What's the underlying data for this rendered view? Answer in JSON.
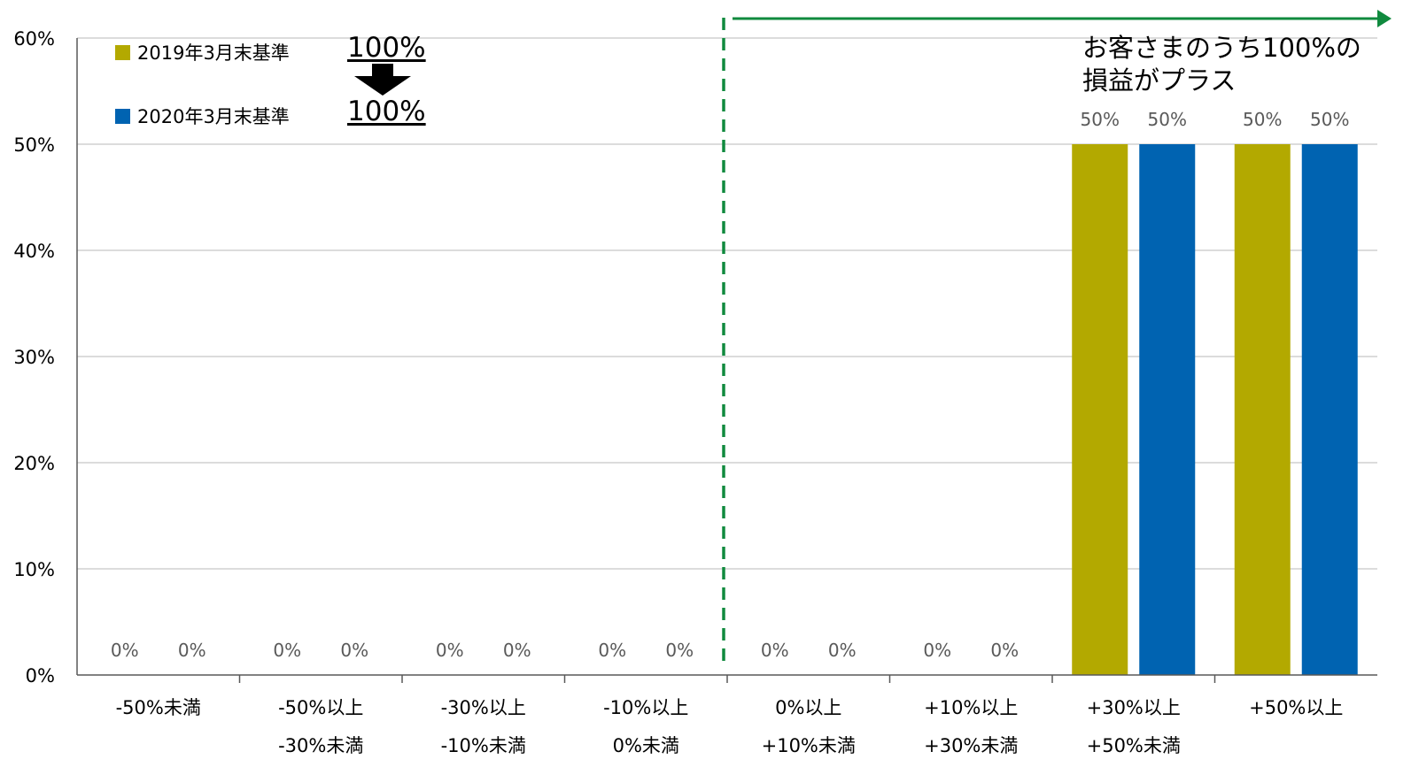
{
  "legend": {
    "items": [
      {
        "label": "2019年3月末基準",
        "color": "#b3a900"
      },
      {
        "label": "2020年3月末基準",
        "color": "#0063b1"
      }
    ]
  },
  "summary": {
    "pct_2019": "100%",
    "pct_2020": "100%",
    "arrow_icon": "down-arrow-icon"
  },
  "callout": {
    "line1": "お客さまのうち100%の",
    "line2": "損益がプラス"
  },
  "colors": {
    "grid": "#c8c8c8",
    "axis": "#595959",
    "divider": "#108a3e",
    "value_label": "#595959"
  },
  "chart_data": {
    "type": "bar",
    "categories": [
      [
        "-50%未満"
      ],
      [
        "-50%以上",
        "-30%未満"
      ],
      [
        "-30%以上",
        "-10%未満"
      ],
      [
        "-10%以上",
        "0%未満"
      ],
      [
        "0%以上",
        "+10%未満"
      ],
      [
        "+10%以上",
        "+30%未満"
      ],
      [
        "+30%以上",
        "+50%未満"
      ],
      [
        "+50%以上"
      ]
    ],
    "series": [
      {
        "name": "2019年3月末基準",
        "color": "#b3a900",
        "values": [
          0,
          0,
          0,
          0,
          0,
          0,
          50,
          50
        ]
      },
      {
        "name": "2020年3月末基準",
        "color": "#0063b1",
        "values": [
          0,
          0,
          0,
          0,
          0,
          0,
          50,
          50
        ]
      }
    ],
    "value_labels": [
      [
        "0%",
        "0%",
        "0%",
        "0%",
        "0%",
        "0%",
        "50%",
        "50%"
      ],
      [
        "0%",
        "0%",
        "0%",
        "0%",
        "0%",
        "0%",
        "50%",
        "50%"
      ]
    ],
    "yticks": [
      "0%",
      "10%",
      "20%",
      "30%",
      "40%",
      "50%",
      "60%"
    ],
    "ylim": [
      0,
      60
    ],
    "grid": true,
    "divider_between_categories": [
      3,
      4
    ],
    "legend_position": "top-left"
  }
}
